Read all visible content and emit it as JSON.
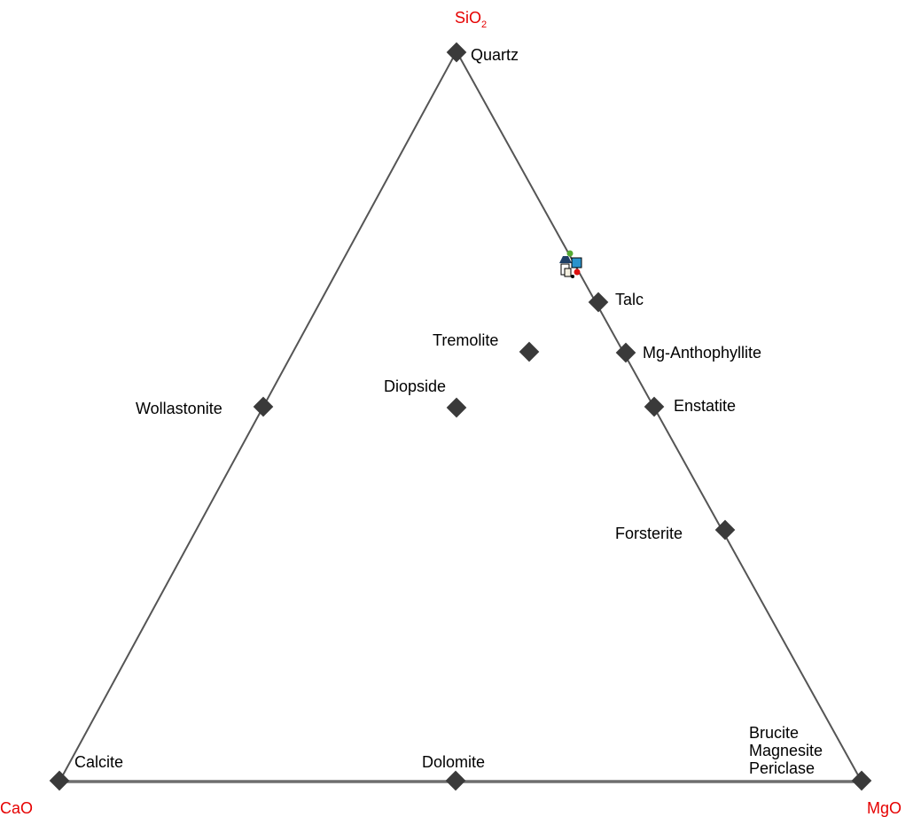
{
  "vertices": {
    "top": {
      "base": "SiO",
      "sub": "2"
    },
    "left": "CaO",
    "right": "MgO"
  },
  "minerals": {
    "quartz": "Quartz",
    "talc": "Talc",
    "tremolite": "Tremolite",
    "mg_anthophyllite": "Mg-Anthophyllite",
    "diopside": "Diopside",
    "wollastonite": "Wollastonite",
    "enstatite": "Enstatite",
    "forsterite": "Forsterite",
    "brucite": "Brucite",
    "magnesite": "Magnesite",
    "periclase": "Periclase",
    "calcite": "Calcite",
    "dolomite": "Dolomite"
  },
  "sample_cluster_icon": "multicolor-sample-markers",
  "colors": {
    "vertex_label": "#e60000",
    "marker": "#3a3a3a",
    "edge": "#555555"
  }
}
